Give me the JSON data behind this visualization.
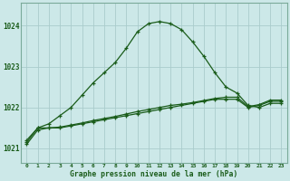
{
  "title": "Graphe pression niveau de la mer (hPa)",
  "background_color": "#cce8e8",
  "grid_color": "#aacccc",
  "line_color": "#1a5c1a",
  "xlim": [
    -0.5,
    23.5
  ],
  "ylim": [
    1020.65,
    1024.55
  ],
  "yticks": [
    1021,
    1022,
    1023,
    1024
  ],
  "xticks": [
    0,
    1,
    2,
    3,
    4,
    5,
    6,
    7,
    8,
    9,
    10,
    11,
    12,
    13,
    14,
    15,
    16,
    17,
    18,
    19,
    20,
    21,
    22,
    23
  ],
  "series_main_x": [
    0,
    1,
    2,
    3,
    4,
    5,
    6,
    7,
    8,
    9,
    10,
    11,
    12,
    13,
    14,
    15,
    16,
    17,
    18,
    19,
    20,
    21,
    22,
    23
  ],
  "series_main_y": [
    1021.2,
    1021.5,
    1021.6,
    1021.8,
    1022.0,
    1022.3,
    1022.6,
    1022.85,
    1023.1,
    1023.45,
    1023.85,
    1024.05,
    1024.1,
    1024.05,
    1023.9,
    1023.6,
    1023.25,
    1022.85,
    1022.5,
    1022.35,
    1022.05,
    1022.0,
    1022.1,
    1022.1
  ],
  "series_flat1_x": [
    0,
    1,
    2,
    3,
    4,
    5,
    6,
    7,
    8,
    9,
    10,
    11,
    12,
    13,
    14,
    15,
    16,
    17,
    18,
    19,
    20,
    21,
    22,
    23
  ],
  "series_flat1_y": [
    1021.1,
    1021.45,
    1021.5,
    1021.5,
    1021.55,
    1021.6,
    1021.65,
    1021.7,
    1021.75,
    1021.8,
    1021.85,
    1021.9,
    1021.95,
    1022.0,
    1022.05,
    1022.1,
    1022.15,
    1022.2,
    1022.2,
    1022.2,
    1022.0,
    1022.05,
    1022.15,
    1022.15
  ],
  "series_flat2_x": [
    0,
    1,
    2,
    3,
    4,
    5,
    6,
    7,
    8,
    9,
    10,
    11,
    12,
    13,
    14,
    15,
    16,
    17,
    18,
    19,
    20,
    21,
    22,
    23
  ],
  "series_flat2_y": [
    1021.15,
    1021.5,
    1021.5,
    1021.52,
    1021.57,
    1021.62,
    1021.68,
    1021.73,
    1021.78,
    1021.84,
    1021.9,
    1021.95,
    1022.0,
    1022.05,
    1022.08,
    1022.12,
    1022.17,
    1022.22,
    1022.25,
    1022.25,
    1022.02,
    1022.07,
    1022.18,
    1022.18
  ]
}
